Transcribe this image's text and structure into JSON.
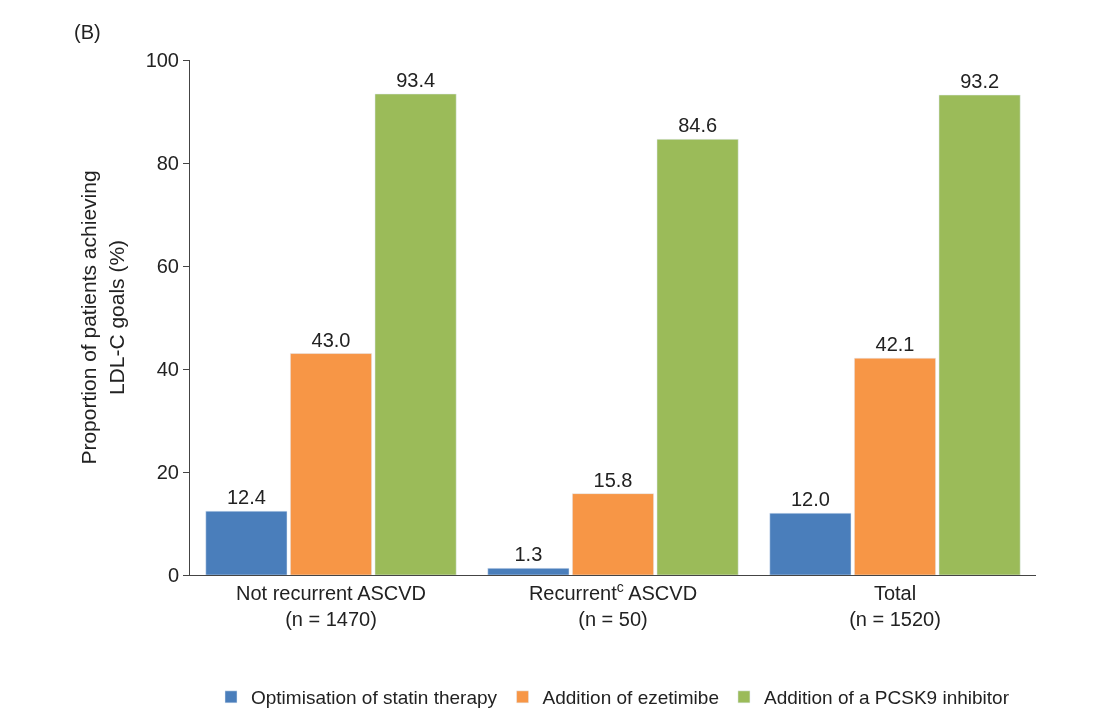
{
  "chart_data": {
    "type": "bar",
    "ylabel": "Proportion of patients achieving\nLDL-C goals (%)",
    "annotations": [
      "(B)"
    ],
    "categories": [
      "Not recurrent ASCVD\n(n = 1470)",
      "Recurrent$^{c}$ ASCVD\n(n = 50)",
      "Total\n(n = 1520)"
    ],
    "series": [
      {
        "name": "Optimisation of statin therapy",
        "color": "#4a7ebb",
        "values": [
          12.4,
          1.3,
          12.0
        ],
        "value_labels": [
          "12.4",
          "1.3",
          "12.0"
        ]
      },
      {
        "name": "Addition of ezetimibe",
        "color": "#f79646",
        "values": [
          43.0,
          15.8,
          42.1
        ],
        "value_labels": [
          "43.0",
          "15.8",
          "42.1"
        ]
      },
      {
        "name": "Addition of a PCSK9 inhibitor",
        "color": "#9bbb59",
        "values": [
          93.4,
          84.6,
          93.2
        ],
        "value_labels": [
          "93.4",
          "84.6",
          "93.2"
        ]
      }
    ],
    "ylim": [
      0,
      100
    ],
    "yticks": [
      0,
      20,
      40,
      60,
      80,
      100
    ],
    "legend": "bottom"
  }
}
